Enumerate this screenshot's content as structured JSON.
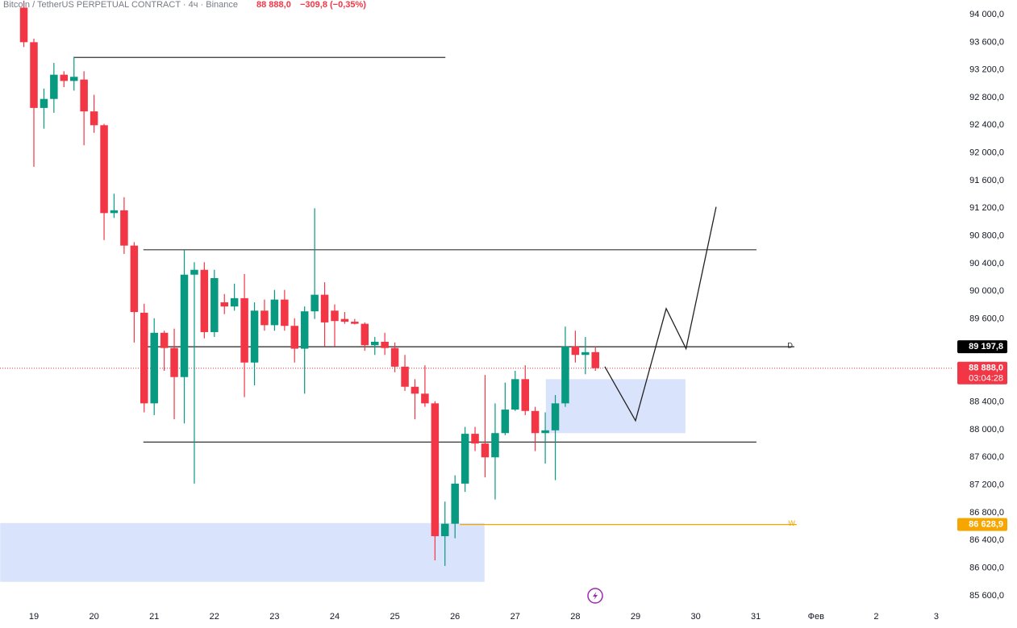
{
  "chart_data": {
    "type": "candlestick",
    "title": "Bitcoin / TetherUS PERPETUAL CONTRACT · 4ч · Binance",
    "last_price_text": "88 888,0",
    "change_text": "−309,8 (−0,35%)",
    "up_color": "#089981",
    "down_color": "#f23645",
    "x": [
      18.833,
      19,
      19.167,
      19.333,
      19.5,
      19.667,
      19.833,
      20,
      20.167,
      20.333,
      20.5,
      20.667,
      20.833,
      21,
      21.167,
      21.333,
      21.5,
      21.667,
      21.833,
      22,
      22.167,
      22.333,
      22.5,
      22.667,
      22.833,
      23,
      23.167,
      23.333,
      23.5,
      23.667,
      23.833,
      24,
      24.167,
      24.333,
      24.5,
      24.667,
      24.833,
      25,
      25.167,
      25.333,
      25.5,
      25.667,
      25.833,
      26,
      26.167,
      26.333,
      26.5,
      26.667,
      26.833,
      27,
      27.167,
      27.333,
      27.5,
      27.667,
      27.833,
      28,
      28.167,
      28.333
    ],
    "open": [
      94100,
      93600,
      92650,
      92780,
      93130,
      93040,
      93060,
      92600,
      92400,
      91130,
      91170,
      90660,
      89690,
      88380,
      89400,
      89180,
      88760,
      90240,
      90310,
      89410,
      89840,
      89780,
      89900,
      88970,
      89720,
      89510,
      89880,
      89500,
      89170,
      89710,
      89950,
      89720,
      89600,
      89560,
      89530,
      89220,
      89270,
      89180,
      88910,
      88620,
      88520,
      88380,
      86460,
      86640,
      87220,
      87940,
      87800,
      87600,
      87950,
      88290,
      88730,
      88270,
      87950,
      87990,
      88380,
      89200,
      89080,
      89120
    ],
    "high": [
      94200,
      93650,
      92930,
      93300,
      93180,
      93390,
      93180,
      92840,
      92420,
      91410,
      91360,
      90710,
      89820,
      89610,
      89430,
      89460,
      90600,
      90420,
      90420,
      90310,
      89960,
      90110,
      90250,
      89840,
      89880,
      90020,
      90020,
      89610,
      89780,
      91200,
      90130,
      89810,
      89700,
      89600,
      89550,
      89340,
      89400,
      89260,
      89080,
      88730,
      88930,
      88410,
      86960,
      87340,
      88040,
      88040,
      88790,
      88380,
      88680,
      88850,
      88930,
      88330,
      88250,
      88500,
      89490,
      89430,
      89340,
      89200
    ],
    "low": [
      93530,
      91800,
      92350,
      92580,
      92950,
      92900,
      92110,
      92290,
      90740,
      91060,
      90540,
      89260,
      88250,
      88210,
      88850,
      88150,
      88090,
      87220,
      89320,
      89340,
      89670,
      89720,
      88470,
      88640,
      89430,
      89430,
      89430,
      88970,
      88520,
      89600,
      89200,
      89200,
      89530,
      89520,
      89140,
      89080,
      89080,
      88830,
      88560,
      88150,
      88330,
      86110,
      86030,
      86430,
      87100,
      87690,
      87310,
      86990,
      87920,
      88270,
      88210,
      87690,
      87510,
      87270,
      88330,
      88970,
      88800,
      88850
    ],
    "close": [
      93600,
      92650,
      92780,
      93130,
      93040,
      93100,
      92600,
      92400,
      91130,
      91170,
      90660,
      89700,
      88380,
      89400,
      89180,
      88760,
      90240,
      90310,
      89410,
      90190,
      89780,
      89900,
      88970,
      89720,
      89510,
      89880,
      89500,
      89170,
      89710,
      89950,
      89550,
      89570,
      89560,
      89530,
      89220,
      89270,
      89180,
      88910,
      88620,
      88520,
      88380,
      86460,
      86640,
      87220,
      87940,
      87800,
      87600,
      87950,
      88290,
      88730,
      88270,
      87950,
      87990,
      88380,
      89200,
      89080,
      89120,
      88888
    ],
    "xlim": [
      18.437,
      34.255
    ],
    "xticks": [
      19,
      20,
      21,
      22,
      23,
      24,
      25,
      26,
      27,
      28,
      29,
      30,
      31,
      {
        "value": 32,
        "label": "Фев"
      },
      {
        "value": 33,
        "label": "2"
      },
      {
        "value": 34,
        "label": "3"
      }
    ],
    "ylim": [
      85471,
      94210
    ],
    "yticks": [
      {
        "value": 94000,
        "label": "94 000,0"
      },
      {
        "value": 93600,
        "label": "93 600,0"
      },
      {
        "value": 93200,
        "label": "93 200,0"
      },
      {
        "value": 92800,
        "label": "92 800,0"
      },
      {
        "value": 92400,
        "label": "92 400,0"
      },
      {
        "value": 92000,
        "label": "92 000,0"
      },
      {
        "value": 91600,
        "label": "91 600,0"
      },
      {
        "value": 91200,
        "label": "91 200,0"
      },
      {
        "value": 90800,
        "label": "90 800,0"
      },
      {
        "value": 90400,
        "label": "90 400,0"
      },
      {
        "value": 90000,
        "label": "90 000,0"
      },
      {
        "value": 89600,
        "label": "89 600,0"
      },
      {
        "value": 89200,
        "label": "89 200,0"
      },
      {
        "value": 88800,
        "label": "88 800,0"
      },
      {
        "value": 88400,
        "label": "88 400,0"
      },
      {
        "value": 88000,
        "label": "88 000,0"
      },
      {
        "value": 87600,
        "label": "87 600,0"
      },
      {
        "value": 87200,
        "label": "87 200,0"
      },
      {
        "value": 86800,
        "label": "86 800,0"
      },
      {
        "value": 86400,
        "label": "86 400,0"
      },
      {
        "value": 86000,
        "label": "86 000,0"
      },
      {
        "value": 85600,
        "label": "85 600,0"
      }
    ],
    "zones": [
      {
        "x": [
          18.44,
          26.49
        ],
        "y": [
          85800,
          86650
        ]
      },
      {
        "x": [
          27.51,
          29.83
        ],
        "y": [
          87950,
          88730
        ]
      }
    ],
    "zone_color": "#d6e0fc",
    "hlines": [
      {
        "x": [
          19.67,
          25.84
        ],
        "y": 93380,
        "color": "#333333"
      },
      {
        "x": [
          20.82,
          31.01
        ],
        "y": 90600,
        "color": "#333333"
      },
      {
        "x": [
          20.82,
          31.64
        ],
        "y": 89197.8,
        "color": "#222222",
        "label": "D"
      },
      {
        "x": [
          20.82,
          31.01
        ],
        "y": 87820,
        "color": "#333333"
      },
      {
        "x": [
          26.08,
          31.68
        ],
        "y": 86628.9,
        "color": "#f7a600",
        "label": "W"
      }
    ],
    "projection": {
      "x": [
        28.49,
        29.0,
        29.51,
        29.84,
        30.34
      ],
      "y": [
        88910,
        88130,
        89750,
        89170,
        91220
      ],
      "color": "#222222"
    },
    "price_labels": [
      {
        "value": 89197.8,
        "label": "89 197,8",
        "color": "#000000"
      },
      {
        "value": 88888,
        "label": "88 888,0",
        "sub": "03:04:28",
        "color": "#f23645"
      },
      {
        "value": 86628.9,
        "label": "86 628,9",
        "color": "#f7a600"
      }
    ]
  }
}
